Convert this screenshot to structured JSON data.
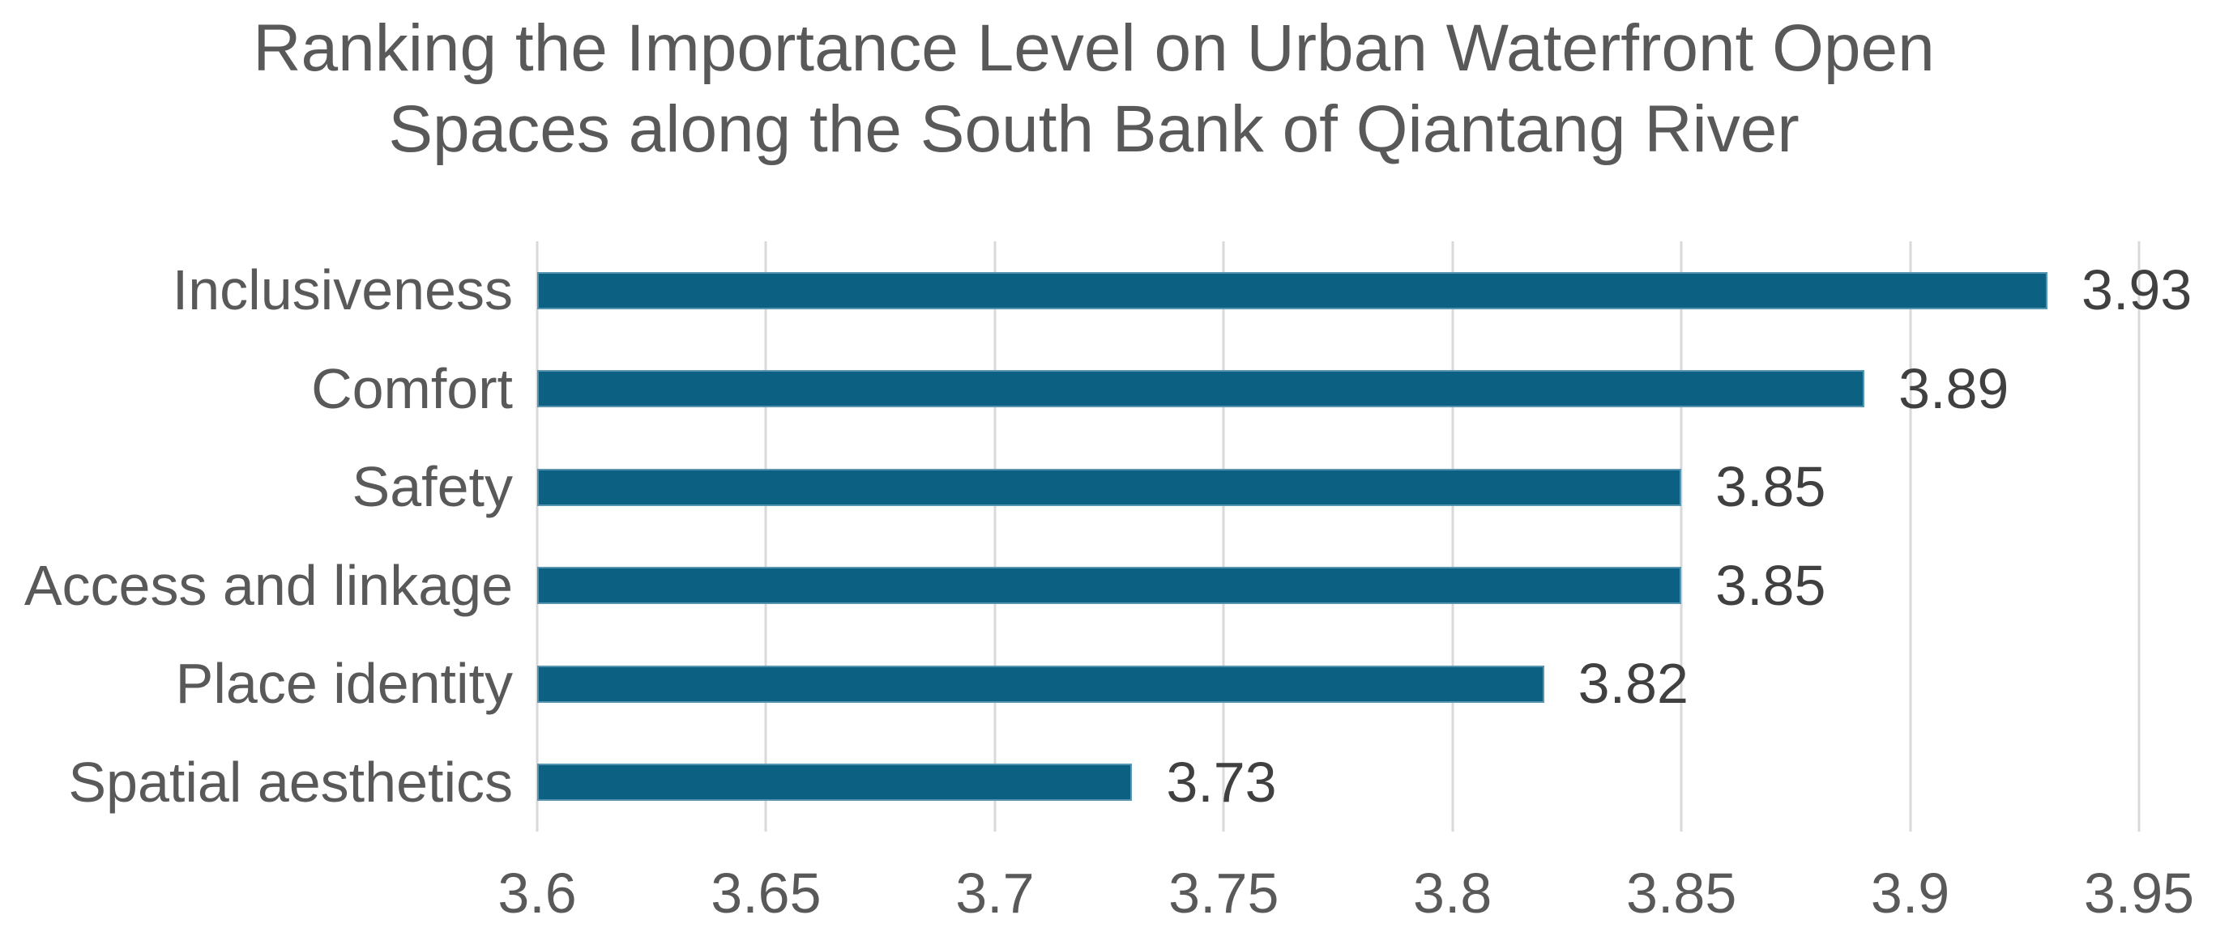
{
  "chart_data": {
    "type": "bar",
    "orientation": "horizontal",
    "title": "Ranking the Importance Level on Urban Waterfront Open Spaces along the South Bank of Qiantang River",
    "title_lines": [
      "Ranking the Importance Level on Urban Waterfront Open",
      "Spaces along the South Bank of Qiantang River"
    ],
    "categories": [
      "Inclusiveness",
      "Comfort",
      "Safety",
      "Access and linkage",
      "Place identity",
      "Spatial aesthetics"
    ],
    "values": [
      3.93,
      3.89,
      3.85,
      3.85,
      3.82,
      3.73
    ],
    "data_labels": [
      "3.93",
      "3.89",
      "3.85",
      "3.85",
      "3.82",
      "3.73"
    ],
    "xlim": [
      3.6,
      3.95
    ],
    "xticks": [
      3.6,
      3.65,
      3.7,
      3.75,
      3.8,
      3.85,
      3.9,
      3.95
    ],
    "xtick_labels": [
      "3.6",
      "3.65",
      "3.7",
      "3.75",
      "3.8",
      "3.85",
      "3.9",
      "3.95"
    ],
    "grid": "vertical-gridlines-on",
    "legend": "none",
    "colors": {
      "bar": "#0c6182",
      "bar_border": "#5795b2",
      "gridline": "#d9d9d9",
      "title_text": "#595959",
      "axis_text": "#595959",
      "data_label_text": "#404040",
      "background": "#ffffff"
    }
  }
}
